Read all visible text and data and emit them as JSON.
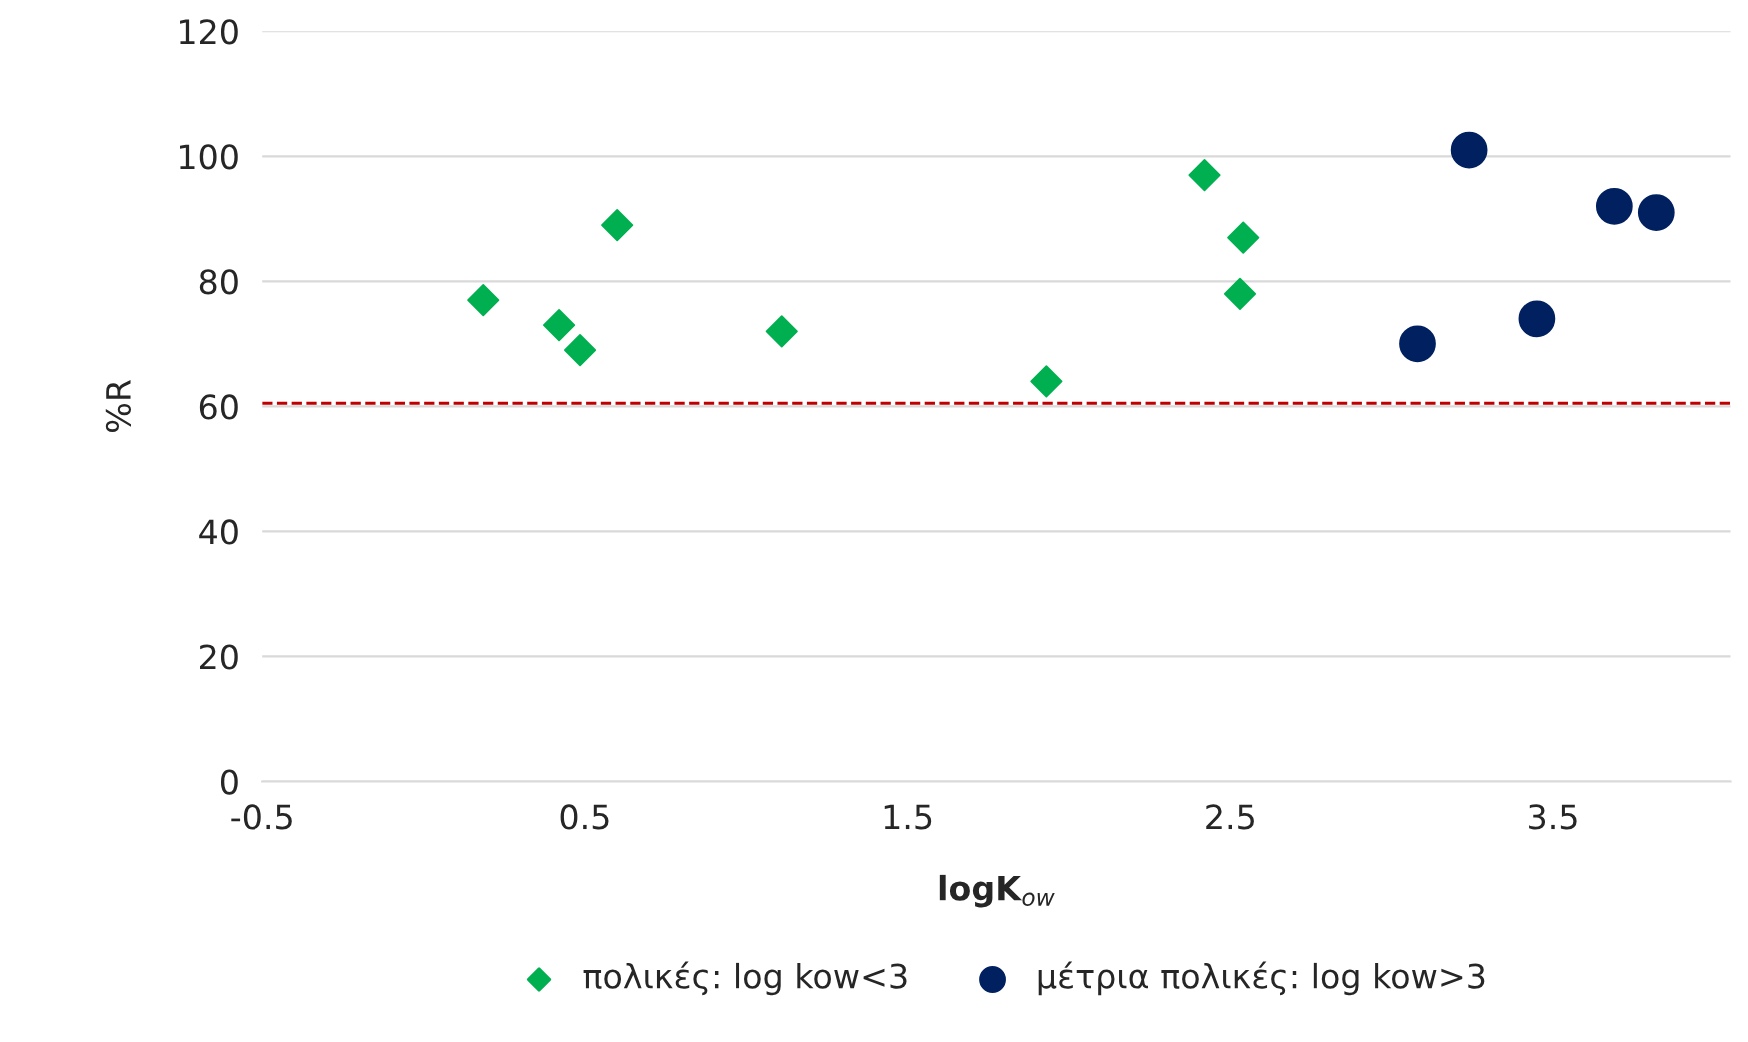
{
  "chart_data": {
    "type": "scatter",
    "xlabel": "logK$_{ow}$",
    "ylabel": "%R",
    "xlim": [
      -0.5,
      4.05
    ],
    "ylim": [
      0,
      120
    ],
    "xticks": [
      -0.5,
      0.5,
      1.5,
      2.5,
      3.5
    ],
    "yticks": [
      0,
      20,
      40,
      60,
      80,
      100,
      120
    ],
    "grid": "y",
    "legend": "bottom",
    "ref_lines": [
      {
        "axis": "y",
        "value": 60.5,
        "color": "#c00000",
        "line_style": "dashed"
      }
    ],
    "series": [
      {
        "name": "πολικές: log kow<3",
        "color": "#00b050",
        "marker": "diamond",
        "x": [
          0.185,
          0.42,
          0.485,
          0.6,
          1.11,
          1.93,
          2.42,
          2.54,
          2.53
        ],
        "values": [
          77,
          73,
          69,
          89,
          72,
          64,
          97,
          87,
          78
        ]
      },
      {
        "name": "μέτρια πολικές: log kow>3",
        "color": "#002060",
        "marker": "circle",
        "x": [
          3.08,
          3.24,
          3.45,
          3.69,
          3.82
        ],
        "values": [
          70,
          101,
          74,
          92,
          91
        ]
      }
    ]
  }
}
